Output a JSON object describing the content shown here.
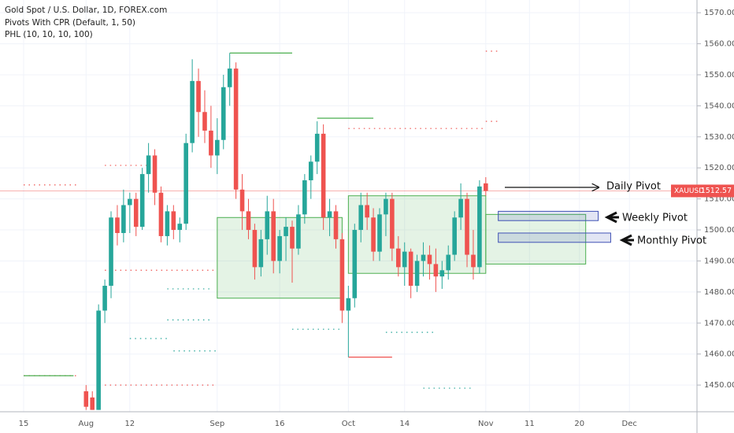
{
  "chart_data": {
    "type": "candlestick",
    "title": "Gold Spot / U.S. Dollar, 1D, FOREX.com",
    "indicators": [
      "Pivots With CPR (Default, 1, 50)",
      "PHL (10, 10, 10, 100)"
    ],
    "symbol": "XAUUSD",
    "categories": [
      "15",
      null,
      null,
      null,
      null,
      null,
      null,
      null,
      null,
      null,
      "Aug",
      null,
      null,
      null,
      null,
      null,
      null,
      "12",
      null,
      null,
      null,
      null,
      null,
      null,
      null,
      null,
      null,
      null,
      null,
      null,
      null,
      "Sep",
      null,
      null,
      null,
      null,
      null,
      null,
      null,
      null,
      null,
      "16",
      null,
      null,
      null,
      null,
      null,
      null,
      null,
      null,
      null,
      null,
      "Oct",
      null,
      null,
      null,
      null,
      null,
      null,
      null,
      null,
      "14",
      null,
      null,
      null,
      null,
      null,
      null,
      null,
      null,
      null,
      null,
      null,
      null,
      "Nov",
      null,
      null,
      null,
      null,
      null,
      null,
      "11",
      null,
      null,
      null,
      null,
      null,
      null,
      null,
      "20",
      null,
      null,
      null,
      null,
      null,
      null,
      null,
      "Dec",
      null
    ],
    "open": [
      null,
      null,
      null,
      null,
      null,
      null,
      null,
      null,
      null,
      null,
      1448,
      1446,
      1442,
      1474,
      1482,
      1504,
      1499,
      1508,
      1510,
      1501,
      1518,
      1524,
      1512,
      1498,
      1506,
      1500,
      1502,
      1528,
      1548,
      1538,
      1532,
      1524,
      1529,
      1546,
      1552,
      1513,
      1506,
      1500,
      1488,
      1497,
      1506,
      1490,
      1498,
      1501,
      1494,
      1505,
      1516,
      1522,
      1531,
      1504,
      1506,
      1497,
      1474,
      1478,
      1500,
      1508,
      1504,
      1493,
      1505,
      1510,
      1494,
      1488,
      1493,
      1482,
      1490,
      1492,
      1489,
      1485,
      1487,
      1492,
      1504,
      1510,
      1492,
      1488,
      1515,
      null,
      null,
      null,
      null,
      null,
      null,
      null,
      null,
      null,
      null,
      null,
      null,
      null,
      null,
      null,
      null,
      null,
      null,
      null,
      null,
      null,
      null,
      null,
      null
    ],
    "high": [
      null,
      null,
      null,
      null,
      null,
      null,
      null,
      null,
      null,
      null,
      1450,
      1448,
      1476,
      1484,
      1506,
      1508,
      1513,
      1512,
      1512,
      1520,
      1528,
      1526,
      1514,
      1508,
      1508,
      1504,
      1531,
      1555,
      1552,
      1545,
      1540,
      1536,
      1550,
      1557,
      1554,
      1518,
      1510,
      1502,
      1500,
      1511,
      1510,
      1500,
      1504,
      1503,
      1508,
      1518,
      1524,
      1535,
      1534,
      1510,
      1508,
      1499,
      1482,
      1502,
      1512,
      1512,
      1507,
      1507,
      1512,
      1512,
      1498,
      1496,
      1494,
      1492,
      1496,
      1495,
      1494,
      1490,
      1495,
      1506,
      1515,
      1512,
      1500,
      1516,
      1517,
      null,
      null,
      null,
      null,
      null,
      null,
      null,
      null,
      null,
      null,
      null,
      null,
      null,
      null,
      null,
      null,
      null,
      null,
      null,
      null,
      null,
      null,
      null,
      null
    ],
    "low": [
      null,
      null,
      null,
      null,
      null,
      null,
      null,
      null,
      null,
      null,
      1442,
      1442,
      1442,
      1470,
      1478,
      1495,
      1496,
      1499,
      1498,
      1500,
      1512,
      1508,
      1496,
      1495,
      1497,
      1496,
      1500,
      1525,
      1530,
      1528,
      1520,
      1518,
      1526,
      1540,
      1510,
      1500,
      1497,
      1484,
      1485,
      1492,
      1486,
      1486,
      1490,
      1483,
      1492,
      1502,
      1510,
      1518,
      1500,
      1498,
      1494,
      1470,
      1459,
      1475,
      1496,
      1500,
      1490,
      1490,
      1498,
      1490,
      1485,
      1482,
      1478,
      1480,
      1485,
      1484,
      1480,
      1481,
      1484,
      1490,
      1500,
      1488,
      1484,
      1486,
      1511,
      null,
      null,
      null,
      null,
      null,
      null,
      null,
      null,
      null,
      null,
      null,
      null,
      null,
      null,
      null,
      null,
      null,
      null,
      null,
      null,
      null,
      null,
      null,
      null
    ],
    "close": [
      null,
      null,
      null,
      null,
      null,
      null,
      null,
      null,
      null,
      null,
      1443,
      1442,
      1474,
      1482,
      1504,
      1499,
      1508,
      1510,
      1501,
      1518,
      1524,
      1512,
      1498,
      1506,
      1500,
      1502,
      1528,
      1548,
      1538,
      1532,
      1524,
      1529,
      1546,
      1552,
      1513,
      1506,
      1500,
      1488,
      1497,
      1506,
      1490,
      1498,
      1501,
      1494,
      1505,
      1516,
      1522,
      1531,
      1504,
      1506,
      1497,
      1474,
      1478,
      1500,
      1508,
      1504,
      1493,
      1505,
      1510,
      1494,
      1488,
      1493,
      1482,
      1490,
      1492,
      1489,
      1485,
      1487,
      1492,
      1504,
      1510,
      1492,
      1488,
      1514,
      1512.57,
      null,
      null,
      null,
      null,
      null,
      null,
      null,
      null,
      null,
      null,
      null,
      null,
      null,
      null,
      null,
      null,
      null,
      null,
      null,
      null,
      null,
      null,
      null,
      null
    ],
    "up_color": "#26a69a",
    "down_color": "#ef5350",
    "ylim": [
      1441.4,
      1574.1
    ],
    "yticks": [
      {
        "value": 1450,
        "label": "1450.00"
      },
      {
        "value": 1460,
        "label": "1460.00"
      },
      {
        "value": 1470,
        "label": "1470.00"
      },
      {
        "value": 1480,
        "label": "1480.00"
      },
      {
        "value": 1490,
        "label": "1490.00"
      },
      {
        "value": 1500,
        "label": "1500.00"
      },
      {
        "value": 1510,
        "label": "1510.00"
      },
      {
        "value": 1520,
        "label": "1520.00"
      },
      {
        "value": 1530,
        "label": "1530.00"
      },
      {
        "value": 1540,
        "label": "1540.00"
      },
      {
        "value": 1550,
        "label": "1550.00"
      },
      {
        "value": 1560,
        "label": "1560.00"
      },
      {
        "value": 1570,
        "label": "1570.00"
      }
    ],
    "zones": [
      {
        "from": 31,
        "to": 51,
        "low": 1478,
        "high": 1504,
        "color": "#4caf50"
      },
      {
        "from": 52,
        "to": 74,
        "low": 1486,
        "high": 1511,
        "color": "#4caf50"
      },
      {
        "from": 74,
        "to": 90,
        "low": 1489,
        "high": 1505,
        "color": "#4caf50"
      },
      {
        "from": 76,
        "to": 92,
        "low": 1503,
        "high": 1506,
        "color": "#3f51b5"
      },
      {
        "from": 76,
        "to": 94,
        "low": 1496,
        "high": 1499,
        "color": "#3f51b5"
      }
    ],
    "pivot_lines": [
      {
        "from": 0,
        "to": 9,
        "value": 1514.5,
        "color": "#ef5350"
      },
      {
        "from": 0,
        "to": 9,
        "value": 1453,
        "color": "#ef5350"
      },
      {
        "from": 13,
        "to": 20,
        "value": 1520.8,
        "color": "#ef5350"
      },
      {
        "from": 13,
        "to": 31,
        "value": 1487,
        "color": "#ef5350"
      },
      {
        "from": 13,
        "to": 31,
        "value": 1450,
        "color": "#ef5350"
      },
      {
        "from": 52,
        "to": 74,
        "value": 1532.7,
        "color": "#ef5350"
      },
      {
        "from": 74,
        "to": 76,
        "value": 1557.6,
        "color": "#ef5350"
      },
      {
        "from": 74,
        "to": 76,
        "value": 1535,
        "color": "#ef5350"
      },
      {
        "from": 17,
        "to": 23,
        "value": 1465,
        "color": "#26a69a"
      },
      {
        "from": 24,
        "to": 31,
        "value": 1461,
        "color": "#26a69a"
      },
      {
        "from": 23,
        "to": 30,
        "value": 1481,
        "color": "#26a69a"
      },
      {
        "from": 23,
        "to": 30,
        "value": 1471,
        "color": "#26a69a"
      },
      {
        "from": 43,
        "to": 51,
        "value": 1468,
        "color": "#26a69a"
      },
      {
        "from": 58,
        "to": 66,
        "value": 1467,
        "color": "#26a69a"
      },
      {
        "from": 64,
        "to": 72,
        "value": 1449,
        "color": "#26a69a"
      }
    ],
    "phl_lines": [
      {
        "from": 33,
        "to": 43,
        "value": 1557,
        "color": "#4caf50"
      },
      {
        "from": 47,
        "to": 56,
        "value": 1536,
        "color": "#4caf50"
      },
      {
        "from": 52,
        "to": 59,
        "value": 1459,
        "color": "#ef5350"
      },
      {
        "from": 0,
        "to": 8,
        "value": 1453,
        "color": "#4caf50"
      }
    ],
    "annotations": [
      "Daily Pivot",
      "Weekly Pivot",
      "Monthly Pivot"
    ]
  }
}
